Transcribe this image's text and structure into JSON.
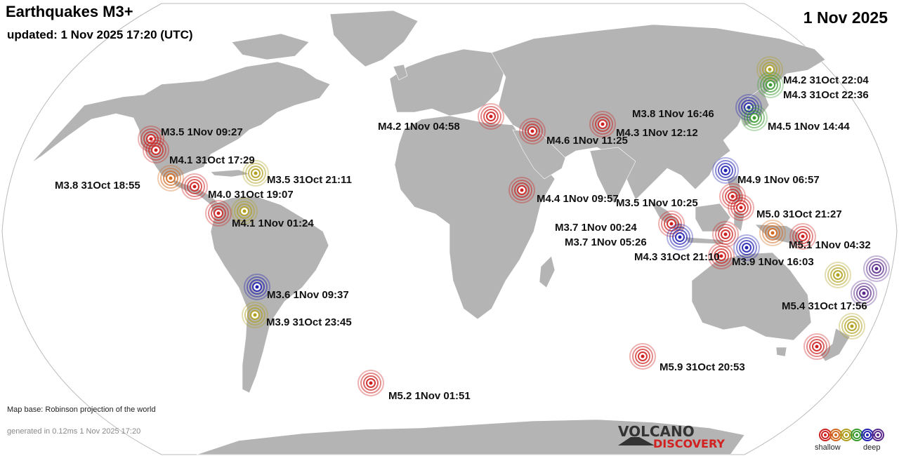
{
  "header": {
    "title": "Earthquakes M3+",
    "updated": "updated:  1 Nov 2025 17:20 (UTC)",
    "date": "1 Nov 2025"
  },
  "colors": {
    "ocean": "#ffffff",
    "land": "#b4b4b4",
    "borders": "#ffffff",
    "depth_scale": [
      "#cc2020",
      "#d26a20",
      "#b0a020",
      "#3a9a30",
      "#2020b0",
      "#5a2a8a"
    ]
  },
  "earthquakes": [
    {
      "label": "M3.5  1Nov 09:27",
      "depth_class": 0
    },
    {
      "label": "M4.1 31Oct 17:29",
      "depth_class": 0
    },
    {
      "label": "M3.8 31Oct 18:55",
      "depth_class": 1
    },
    {
      "label": "M3.5 31Oct 21:11",
      "depth_class": 2
    },
    {
      "label": "M4.0 31Oct 19:07",
      "depth_class": 0
    },
    {
      "label": "M4.1  1Nov 01:24",
      "depth_class": 2
    },
    {
      "label": "M3.6  1Nov 09:37",
      "depth_class": 4
    },
    {
      "label": "M3.9 31Oct 23:45",
      "depth_class": 2
    },
    {
      "label": "M5.2  1Nov 01:51",
      "depth_class": 0
    },
    {
      "label": "M4.2  1Nov 04:58",
      "depth_class": 0
    },
    {
      "label": "M4.6  1Nov 11:25",
      "depth_class": 0
    },
    {
      "label": "M4.3  1Nov 12:12",
      "depth_class": 0
    },
    {
      "label": "M4.4  1Nov 09:57",
      "depth_class": 0
    },
    {
      "label": "M4.2 31Oct 22:04",
      "depth_class": 2
    },
    {
      "label": "M4.3 31Oct 22:36",
      "depth_class": 3
    },
    {
      "label": "M3.8  1Nov 16:46",
      "depth_class": 4
    },
    {
      "label": "M4.5  1Nov 14:44",
      "depth_class": 3
    },
    {
      "label": "M4.9  1Nov 06:57",
      "depth_class": 4
    },
    {
      "label": "M3.5  1Nov 10:25",
      "depth_class": 0
    },
    {
      "label": "M5.0 31Oct 21:27",
      "depth_class": 0
    },
    {
      "label": "M3.7  1Nov 00:24",
      "depth_class": 4
    },
    {
      "label": "M3.7  1Nov 05:26",
      "depth_class": 0
    },
    {
      "label": "M4.3 31Oct 21:10",
      "depth_class": 0
    },
    {
      "label": "M3.9  1Nov 16:03",
      "depth_class": 4
    },
    {
      "label": "M5.1  1Nov 04:32",
      "depth_class": 0
    },
    {
      "label": "M5.4 31Oct 17:56",
      "depth_class": 5
    },
    {
      "label": "M5.9 31Oct 20:53",
      "depth_class": 0
    }
  ],
  "footer": {
    "map_base": "Map base: Robinson projection of the world",
    "generated": "generated in 0.12ms  1 Nov 2025 17:20",
    "logo_top": "VOLCANO",
    "logo_bottom": "DISCOVERY",
    "legend_shallow": "shallow",
    "legend_deep": "deep"
  }
}
